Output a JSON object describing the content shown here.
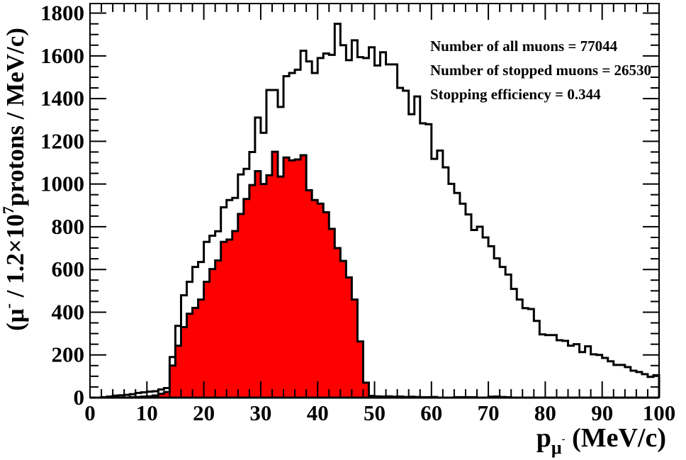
{
  "figure": {
    "background": "#ffffff",
    "frame_color": "#000000"
  },
  "chart_data": {
    "type": "histogram",
    "title": "",
    "xlabel": "p_{mu-} (MeV/c)",
    "ylabel": "(mu- / 1.2x10^7 protons / MeV/c)",
    "xlim": [
      0,
      100
    ],
    "ylim": [
      0,
      1845
    ],
    "x_ticks": [
      0,
      10,
      20,
      30,
      40,
      50,
      60,
      70,
      80,
      90,
      100
    ],
    "y_ticks": [
      0,
      200,
      400,
      600,
      800,
      1000,
      1200,
      1400,
      1600,
      1800
    ],
    "x_tick_step": 10,
    "x_minor_step": 2,
    "y_tick_step": 200,
    "y_minor_step": 50,
    "bin_width": 1,
    "n_bins": 100,
    "grid": false,
    "legend": "none",
    "annotations": [
      "Number of all muons = 77044",
      "Number of stopped muons = 26530",
      "Stopping efficiency = 0.344"
    ],
    "stats": {
      "all_muons": 77044,
      "stopped_muons": 26530,
      "stopping_efficiency": 0.344
    },
    "ylabel_parts": {
      "prefix": "(μ",
      "sup1": "-",
      "mid": " / 1.2×10",
      "sup2": "7",
      "rest": "protons / MeV/c)"
    },
    "xlabel_parts": {
      "base": "p",
      "sub": "μ",
      "subsup": "-",
      "rest": " (MeV/c)"
    },
    "series": [
      {
        "name": "all-muons",
        "style": "step",
        "stroke": "#000000",
        "fill": "none",
        "values": [
          0,
          0,
          2,
          5,
          9,
          11,
          13,
          16,
          22,
          25,
          28,
          30,
          38,
          45,
          190,
          336,
          479,
          542,
          612,
          635,
          729,
          758,
          779,
          891,
          925,
          935,
          1045,
          1071,
          1150,
          1311,
          1240,
          1440,
          1440,
          1361,
          1505,
          1520,
          1535,
          1624,
          1574,
          1520,
          1590,
          1611,
          1605,
          1750,
          1650,
          1580,
          1673,
          1594,
          1590,
          1640,
          1555,
          1617,
          1560,
          1560,
          1450,
          1437,
          1327,
          1410,
          1284,
          1280,
          1118,
          1157,
          1078,
          1001,
          958,
          908,
          858,
          785,
          800,
          750,
          709,
          652,
          612,
          576,
          509,
          459,
          419,
          415,
          359,
          296,
          293,
          293,
          269,
          266,
          243,
          250,
          213,
          240,
          203,
          200,
          186,
          170,
          153,
          153,
          143,
          126,
          120,
          110,
          97,
          105
        ]
      },
      {
        "name": "stopped-muons",
        "style": "filled",
        "stroke": "#000000",
        "fill": "#ff0000",
        "values": [
          0,
          0,
          0,
          0,
          0,
          0,
          0,
          2,
          3,
          5,
          6,
          10,
          18,
          26,
          150,
          243,
          330,
          393,
          420,
          459,
          542,
          602,
          642,
          729,
          740,
          780,
          860,
          930,
          995,
          1060,
          1000,
          1041,
          1151,
          1035,
          1124,
          1111,
          1115,
          1135,
          971,
          925,
          908,
          868,
          790,
          700,
          640,
          563,
          459,
          263,
          70,
          8,
          6,
          5,
          6,
          4,
          5,
          3,
          4,
          3,
          2,
          2,
          3,
          0,
          0,
          0,
          2,
          2,
          2,
          2,
          0,
          0,
          4,
          5,
          3,
          2,
          0,
          0,
          0,
          0,
          0,
          0,
          0,
          0,
          0,
          0,
          0,
          0,
          0,
          0,
          0,
          0,
          0,
          0,
          0,
          0,
          0,
          0,
          0,
          0,
          0,
          0
        ]
      }
    ]
  }
}
